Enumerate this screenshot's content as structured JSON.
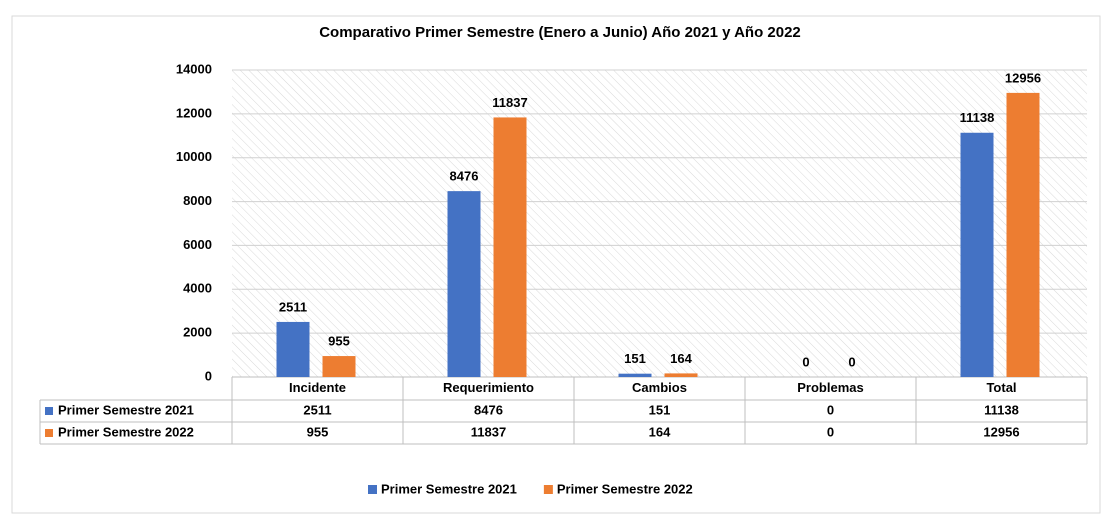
{
  "chart_data": {
    "type": "bar",
    "title": "Comparativo  Primer Semestre (Enero a Junio) Año 2021 y Año 2022",
    "categories": [
      "Incidente",
      "Requerimiento",
      "Cambios",
      "Problemas",
      "Total"
    ],
    "series": [
      {
        "name": "Primer Semestre 2021",
        "color": "#4472c4",
        "values": [
          2511,
          8476,
          151,
          0,
          11138
        ]
      },
      {
        "name": "Primer Semestre 2022",
        "color": "#ed7d31",
        "values": [
          955,
          11837,
          164,
          0,
          12956
        ]
      }
    ],
    "ylim": [
      0,
      14000
    ],
    "yticks": [
      0,
      2000,
      4000,
      6000,
      8000,
      10000,
      12000,
      14000
    ],
    "grid": true
  }
}
